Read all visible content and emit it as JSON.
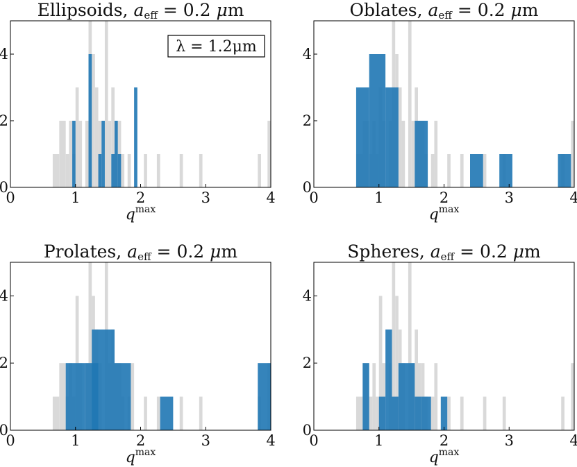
{
  "figure": {
    "width": 831,
    "height": 673
  },
  "colors": {
    "gray": "#d9d9d9",
    "blue": "#1f77b4",
    "overlap": "#1a5f96",
    "axis": "#000000"
  },
  "chart_data": [
    {
      "type": "bar",
      "title": "Ellipsoids, a_eff = 0.2 μm",
      "title_text": "Ellipsoids, ",
      "title_var": "a",
      "title_sub": "eff",
      "title_eq": " = 0.2 ",
      "title_mu": "μ",
      "title_unit": "m",
      "xlabel": "q",
      "xlabel_sup": "max",
      "xlim": [
        0,
        4
      ],
      "ylim": [
        0,
        5
      ],
      "xticks": [
        "0",
        "1",
        "2",
        "3",
        "4"
      ],
      "yticks": [
        "0",
        "2",
        "4"
      ],
      "annotation": "λ = 1.2μm",
      "gray_bins": [
        [
          0.65,
          0.75,
          1
        ],
        [
          0.75,
          0.85,
          2
        ],
        [
          0.85,
          0.9,
          1
        ],
        [
          0.9,
          0.95,
          2
        ],
        [
          0.95,
          1.0,
          1
        ],
        [
          1.0,
          1.05,
          3
        ],
        [
          1.05,
          1.1,
          2
        ],
        [
          1.15,
          1.2,
          2
        ],
        [
          1.2,
          1.25,
          5
        ],
        [
          1.25,
          1.3,
          4
        ],
        [
          1.3,
          1.35,
          3
        ],
        [
          1.35,
          1.4,
          2
        ],
        [
          1.45,
          1.5,
          5
        ],
        [
          1.5,
          1.55,
          2
        ],
        [
          1.55,
          1.6,
          3
        ],
        [
          1.6,
          1.65,
          2
        ],
        [
          1.65,
          1.7,
          2
        ],
        [
          1.7,
          1.75,
          1
        ],
        [
          1.8,
          1.85,
          1
        ],
        [
          2.05,
          2.1,
          1
        ],
        [
          2.25,
          2.3,
          1
        ],
        [
          2.6,
          2.65,
          1
        ],
        [
          2.9,
          2.95,
          1
        ],
        [
          3.8,
          3.85,
          1
        ],
        [
          3.95,
          4.0,
          2
        ]
      ],
      "blue_bins": [
        [
          0.95,
          1.0,
          2
        ],
        [
          1.2,
          1.25,
          4
        ],
        [
          1.35,
          1.4,
          1
        ],
        [
          1.4,
          1.45,
          2
        ],
        [
          1.55,
          1.6,
          1
        ],
        [
          1.6,
          1.65,
          2
        ],
        [
          1.65,
          1.7,
          1
        ],
        [
          1.9,
          1.95,
          3
        ]
      ]
    },
    {
      "type": "bar",
      "title": "Oblates, a_eff = 0.2 μm",
      "title_text": "Oblates, ",
      "title_var": "a",
      "title_sub": "eff",
      "title_eq": " = 0.2 ",
      "title_mu": "μ",
      "title_unit": "m",
      "xlabel": "q",
      "xlabel_sup": "max",
      "xlim": [
        0,
        4
      ],
      "ylim": [
        0,
        5
      ],
      "xticks": [
        "0",
        "1",
        "2",
        "3",
        "4"
      ],
      "yticks": [
        "0",
        "2",
        "4"
      ],
      "gray_bins": [
        [
          0.65,
          0.75,
          1
        ],
        [
          0.75,
          0.85,
          2
        ],
        [
          0.85,
          0.9,
          1
        ],
        [
          0.9,
          0.95,
          2
        ],
        [
          0.95,
          1.0,
          1
        ],
        [
          1.0,
          1.05,
          3
        ],
        [
          1.05,
          1.1,
          2
        ],
        [
          1.15,
          1.2,
          2
        ],
        [
          1.2,
          1.25,
          5
        ],
        [
          1.25,
          1.3,
          4
        ],
        [
          1.3,
          1.35,
          3
        ],
        [
          1.35,
          1.4,
          2
        ],
        [
          1.45,
          1.5,
          5
        ],
        [
          1.5,
          1.55,
          2
        ],
        [
          1.55,
          1.6,
          3
        ],
        [
          1.6,
          1.65,
          2
        ],
        [
          1.65,
          1.7,
          2
        ],
        [
          1.7,
          1.75,
          1
        ],
        [
          1.8,
          1.85,
          1
        ],
        [
          1.85,
          1.9,
          2
        ],
        [
          2.05,
          2.1,
          1
        ],
        [
          2.25,
          2.3,
          1
        ],
        [
          2.6,
          2.65,
          1
        ],
        [
          2.9,
          2.95,
          1
        ],
        [
          3.8,
          3.85,
          1
        ],
        [
          3.95,
          4.0,
          2
        ]
      ],
      "blue_bins": [
        [
          0.65,
          0.85,
          3
        ],
        [
          0.85,
          1.1,
          4
        ],
        [
          1.1,
          1.3,
          3
        ],
        [
          1.55,
          1.75,
          2
        ],
        [
          2.4,
          2.6,
          1
        ],
        [
          2.85,
          3.05,
          1
        ],
        [
          3.75,
          3.95,
          1
        ]
      ]
    },
    {
      "type": "bar",
      "title": "Prolates, a_eff = 0.2 μm",
      "title_text": "Prolates, ",
      "title_var": "a",
      "title_sub": "eff",
      "title_eq": " = 0.2 ",
      "title_mu": "μ",
      "title_unit": "m",
      "xlabel": "q",
      "xlabel_sup": "max",
      "xlim": [
        0,
        4
      ],
      "ylim": [
        0,
        5
      ],
      "xticks": [
        "0",
        "1",
        "2",
        "3",
        "4"
      ],
      "yticks": [
        "0",
        "2",
        "4"
      ],
      "gray_bins": [
        [
          0.65,
          0.75,
          1
        ],
        [
          0.75,
          0.85,
          2
        ],
        [
          0.85,
          0.9,
          1
        ],
        [
          0.9,
          0.95,
          2
        ],
        [
          0.95,
          1.0,
          1
        ],
        [
          1.0,
          1.05,
          4
        ],
        [
          1.05,
          1.1,
          2
        ],
        [
          1.15,
          1.2,
          2
        ],
        [
          1.2,
          1.25,
          5
        ],
        [
          1.25,
          1.3,
          4
        ],
        [
          1.3,
          1.35,
          3
        ],
        [
          1.35,
          1.4,
          2
        ],
        [
          1.45,
          1.5,
          5
        ],
        [
          1.5,
          1.55,
          2
        ],
        [
          1.55,
          1.6,
          3
        ],
        [
          1.6,
          1.65,
          2
        ],
        [
          1.65,
          1.7,
          2
        ],
        [
          1.7,
          1.75,
          1
        ],
        [
          1.8,
          1.85,
          1
        ],
        [
          1.85,
          1.9,
          2
        ],
        [
          2.05,
          2.1,
          1
        ],
        [
          2.25,
          2.3,
          1
        ],
        [
          2.6,
          2.65,
          1
        ],
        [
          2.9,
          2.95,
          1
        ],
        [
          3.8,
          3.85,
          1
        ],
        [
          3.95,
          4.0,
          2
        ]
      ],
      "blue_bins": [
        [
          0.85,
          1.15,
          2
        ],
        [
          1.15,
          1.35,
          2
        ],
        [
          1.25,
          1.6,
          3
        ],
        [
          1.6,
          1.85,
          2
        ],
        [
          2.3,
          2.5,
          1
        ],
        [
          3.8,
          4.0,
          2
        ]
      ]
    },
    {
      "type": "bar",
      "title": "Spheres, a_eff = 0.2 μm",
      "title_text": "Spheres, ",
      "title_var": "a",
      "title_sub": "eff",
      "title_eq": " = 0.2 ",
      "title_mu": "μ",
      "title_unit": "m",
      "xlabel": "q",
      "xlabel_sup": "max",
      "xlim": [
        0,
        4
      ],
      "ylim": [
        0,
        5
      ],
      "xticks": [
        "0",
        "1",
        "2",
        "3",
        "4"
      ],
      "yticks": [
        "0",
        "2",
        "4"
      ],
      "gray_bins": [
        [
          0.65,
          0.75,
          1
        ],
        [
          0.75,
          0.85,
          2
        ],
        [
          0.85,
          0.9,
          1
        ],
        [
          0.9,
          0.95,
          2
        ],
        [
          0.95,
          1.0,
          1
        ],
        [
          1.0,
          1.05,
          4
        ],
        [
          1.05,
          1.1,
          2
        ],
        [
          1.15,
          1.2,
          2
        ],
        [
          1.2,
          1.25,
          5
        ],
        [
          1.25,
          1.3,
          4
        ],
        [
          1.3,
          1.35,
          3
        ],
        [
          1.35,
          1.4,
          2
        ],
        [
          1.45,
          1.5,
          5
        ],
        [
          1.5,
          1.55,
          2
        ],
        [
          1.55,
          1.6,
          3
        ],
        [
          1.6,
          1.65,
          2
        ],
        [
          1.65,
          1.7,
          2
        ],
        [
          1.7,
          1.75,
          1
        ],
        [
          1.8,
          1.85,
          1
        ],
        [
          1.85,
          1.9,
          2
        ],
        [
          2.05,
          2.1,
          1
        ],
        [
          2.25,
          2.3,
          1
        ],
        [
          2.6,
          2.65,
          1
        ],
        [
          2.9,
          2.95,
          1
        ],
        [
          3.8,
          3.85,
          1
        ],
        [
          3.95,
          4.0,
          2
        ]
      ],
      "blue_bins": [
        [
          0.75,
          0.85,
          2
        ],
        [
          1.0,
          1.1,
          1
        ],
        [
          1.1,
          1.2,
          3
        ],
        [
          1.2,
          1.3,
          1
        ],
        [
          1.3,
          1.55,
          2
        ],
        [
          1.55,
          1.65,
          1
        ],
        [
          1.65,
          1.8,
          1
        ],
        [
          1.95,
          2.05,
          1
        ]
      ]
    }
  ]
}
